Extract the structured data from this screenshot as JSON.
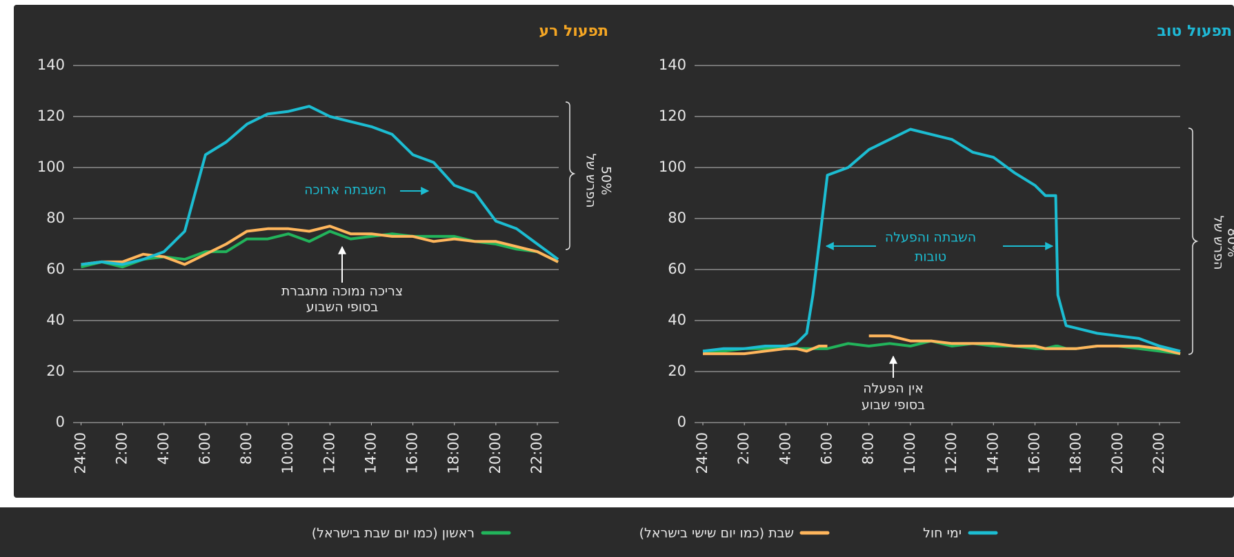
{
  "chart_data": [
    {
      "type": "line",
      "title": "תפעול רע",
      "x": [
        0,
        1,
        2,
        3,
        4,
        5,
        6,
        7,
        8,
        9,
        10,
        11,
        12,
        13,
        14,
        15,
        16,
        17,
        18,
        19,
        20,
        21,
        22,
        23
      ],
      "xlim": [
        0,
        23
      ],
      "xticks": [
        {
          "value": 0,
          "label": "24:00"
        },
        {
          "value": 2,
          "label": "2:00"
        },
        {
          "value": 4,
          "label": "4:00"
        },
        {
          "value": 6,
          "label": "6:00"
        },
        {
          "value": 8,
          "label": "8:00"
        },
        {
          "value": 10,
          "label": "10:00"
        },
        {
          "value": 12,
          "label": "12:00"
        },
        {
          "value": 14,
          "label": "14:00"
        },
        {
          "value": 16,
          "label": "16:00"
        },
        {
          "value": 18,
          "label": "18:00"
        },
        {
          "value": 20,
          "label": "20:00"
        },
        {
          "value": 22,
          "label": "22:00"
        }
      ],
      "ylim": [
        0,
        140
      ],
      "yticks": [
        0,
        20,
        40,
        60,
        80,
        100,
        120,
        140
      ],
      "grid": true,
      "series": [
        {
          "name": "ימי חול",
          "color": "#1cbdd2",
          "values": [
            62,
            63,
            62,
            64,
            67,
            75,
            105,
            110,
            117,
            121,
            122,
            124,
            120,
            118,
            116,
            113,
            105,
            102,
            93,
            90,
            79,
            76,
            70,
            64
          ]
        },
        {
          "name": "שבת (כמו יום שישי בישראל)",
          "color": "#ffb65c",
          "values": [
            62,
            63,
            63,
            66,
            65,
            62,
            66,
            70,
            75,
            76,
            76,
            75,
            77,
            74,
            74,
            73,
            73,
            71,
            72,
            71,
            71,
            69,
            67,
            63
          ]
        },
        {
          "name": "ראשון (כמו יום שבת בישראל)",
          "color": "#22b45b",
          "values": [
            61,
            63,
            61,
            64,
            65,
            64,
            67,
            67,
            72,
            72,
            74,
            71,
            75,
            72,
            73,
            74,
            73,
            73,
            73,
            71,
            70,
            68,
            67,
            63
          ]
        }
      ],
      "annotations": [
        "השבתה ארוכה",
        "צריכה נמוכה מתגברת",
        "בסופי השבוע",
        "הפרש של",
        "50%"
      ]
    },
    {
      "type": "line",
      "title": "תפעול טוב",
      "x": [
        0,
        1,
        2,
        3,
        4,
        4.5,
        5,
        5.3,
        5.6,
        6,
        7,
        8,
        9,
        10,
        11,
        12,
        13,
        14,
        15,
        16,
        16.5,
        17,
        17.1,
        17.5,
        18,
        19,
        20,
        21,
        22,
        23
      ],
      "xlim": [
        0,
        23
      ],
      "xticks": [
        {
          "value": 0,
          "label": "24:00"
        },
        {
          "value": 2,
          "label": "2:00"
        },
        {
          "value": 4,
          "label": "4:00"
        },
        {
          "value": 6,
          "label": "6:00"
        },
        {
          "value": 8,
          "label": "8:00"
        },
        {
          "value": 10,
          "label": "10:00"
        },
        {
          "value": 12,
          "label": "12:00"
        },
        {
          "value": 14,
          "label": "14:00"
        },
        {
          "value": 16,
          "label": "16:00"
        },
        {
          "value": 18,
          "label": "18:00"
        },
        {
          "value": 20,
          "label": "20:00"
        },
        {
          "value": 22,
          "label": "22:00"
        }
      ],
      "ylim": [
        0,
        140
      ],
      "yticks": [
        0,
        20,
        40,
        60,
        80,
        100,
        120,
        140
      ],
      "grid": true,
      "series": [
        {
          "color": "#1cbdd2",
          "values": [
            28,
            29,
            29,
            30,
            30,
            31,
            35,
            50,
            70,
            97,
            100,
            107,
            111,
            115,
            113,
            111,
            106,
            104,
            98,
            93,
            89,
            89,
            50,
            38,
            37,
            35,
            34,
            33,
            30,
            28
          ]
        },
        {
          "color": "#ffb65c",
          "values": [
            27,
            27,
            27,
            28,
            29,
            29,
            28,
            29,
            30,
            30,
            null,
            34,
            34,
            32,
            32,
            31,
            31,
            31,
            30,
            30,
            29,
            29,
            29,
            29,
            29,
            30,
            30,
            30,
            29,
            27
          ]
        },
        {
          "color": "#22b45b",
          "values": [
            28,
            28,
            29,
            29,
            29,
            29,
            29,
            29,
            29,
            29,
            31,
            30,
            31,
            30,
            32,
            30,
            31,
            30,
            30,
            29,
            29,
            30,
            30,
            29,
            29,
            30,
            30,
            29,
            28,
            27
          ]
        }
      ],
      "annotations": [
        "השבתה והפעלה",
        "טובות",
        "אין הפעלה",
        "בסופי שבוע",
        "הפרש של",
        "80%"
      ]
    }
  ]
}
